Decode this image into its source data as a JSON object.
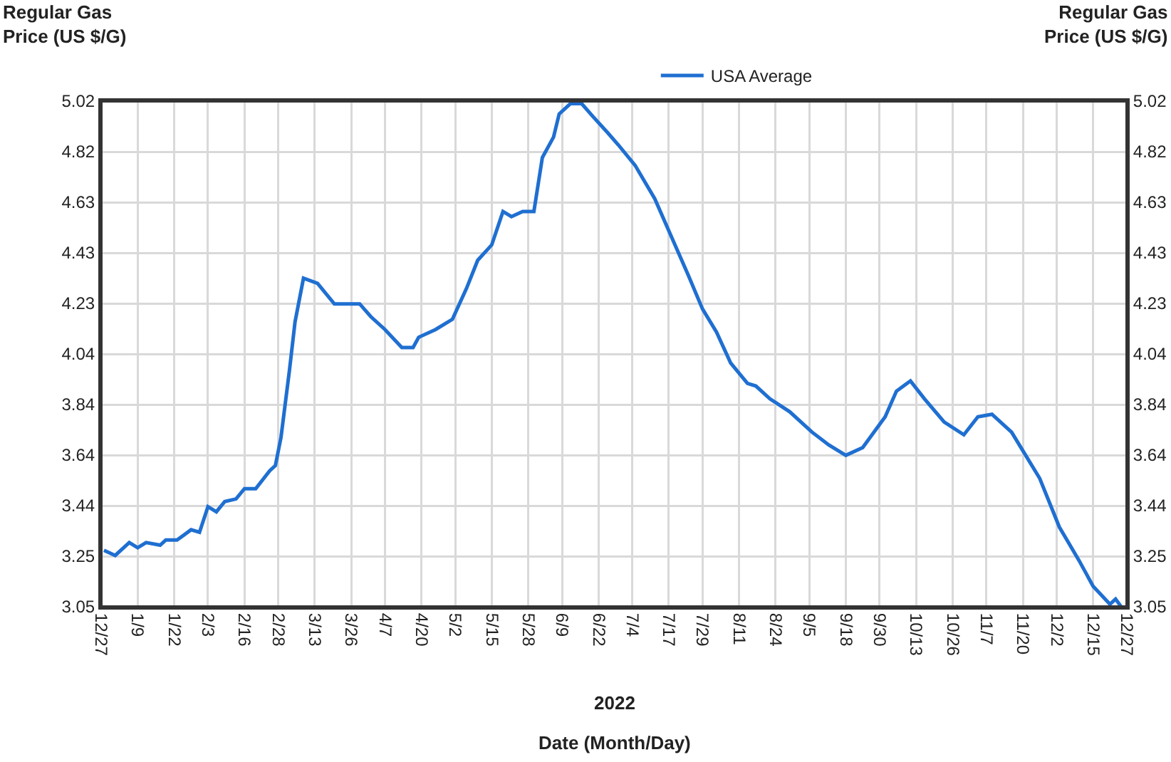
{
  "chart_data": {
    "type": "line",
    "xlabel": "Date (Month/Day)",
    "ylabel": "Regular Gas\nPrice (US $/G)",
    "y2label": "Regular Gas\nPrice (US $/G)",
    "annotations": [
      "2022"
    ],
    "x": [
      "2021-12-28",
      "2022-01-01",
      "2022-01-06",
      "2022-01-09",
      "2022-01-12",
      "2022-01-17",
      "2022-01-19",
      "2022-01-23",
      "2022-01-28",
      "2022-01-31",
      "2022-02-03",
      "2022-02-06",
      "2022-02-09",
      "2022-02-13",
      "2022-02-16",
      "2022-02-20",
      "2022-02-25",
      "2022-02-27",
      "2022-03-01",
      "2022-03-04",
      "2022-03-06",
      "2022-03-09",
      "2022-03-14",
      "2022-03-20",
      "2022-03-25",
      "2022-03-29",
      "2022-04-02",
      "2022-04-07",
      "2022-04-13",
      "2022-04-17",
      "2022-04-19",
      "2022-04-25",
      "2022-05-01",
      "2022-05-06",
      "2022-05-10",
      "2022-05-15",
      "2022-05-19",
      "2022-05-22",
      "2022-05-26",
      "2022-05-30",
      "2022-06-02",
      "2022-06-06",
      "2022-06-08",
      "2022-06-12",
      "2022-06-16",
      "2022-06-20",
      "2022-06-25",
      "2022-06-29",
      "2022-07-05",
      "2022-07-12",
      "2022-07-18",
      "2022-07-24",
      "2022-07-29",
      "2022-08-03",
      "2022-08-08",
      "2022-08-14",
      "2022-08-17",
      "2022-08-22",
      "2022-08-29",
      "2022-09-06",
      "2022-09-12",
      "2022-09-18",
      "2022-09-24",
      "2022-10-02",
      "2022-10-06",
      "2022-10-11",
      "2022-10-16",
      "2022-10-23",
      "2022-10-30",
      "2022-11-04",
      "2022-11-09",
      "2022-11-16",
      "2022-11-21",
      "2022-11-26",
      "2022-12-03",
      "2022-12-10",
      "2022-12-15",
      "2022-12-21",
      "2022-12-23",
      "2022-12-25"
    ],
    "series": [
      {
        "name": "USA Average",
        "color": "#1f6fd1",
        "values": [
          3.27,
          3.25,
          3.3,
          3.28,
          3.3,
          3.29,
          3.31,
          3.31,
          3.35,
          3.34,
          3.44,
          3.42,
          3.46,
          3.47,
          3.51,
          3.51,
          3.58,
          3.6,
          3.71,
          3.97,
          4.16,
          4.33,
          4.31,
          4.23,
          4.23,
          4.23,
          4.18,
          4.13,
          4.06,
          4.06,
          4.1,
          4.13,
          4.17,
          4.29,
          4.4,
          4.46,
          4.59,
          4.57,
          4.59,
          4.59,
          4.8,
          4.88,
          4.97,
          5.01,
          5.01,
          4.96,
          4.9,
          4.85,
          4.77,
          4.64,
          4.49,
          4.34,
          4.21,
          4.12,
          4.0,
          3.92,
          3.91,
          3.86,
          3.81,
          3.73,
          3.68,
          3.64,
          3.67,
          3.79,
          3.89,
          3.93,
          3.86,
          3.77,
          3.72,
          3.79,
          3.8,
          3.73,
          3.64,
          3.55,
          3.36,
          3.23,
          3.13,
          3.06,
          3.08,
          3.05
        ]
      }
    ],
    "xlim": [
      "2021-12-27",
      "2022-12-27"
    ],
    "xticks": [
      {
        "value": "2021-12-27",
        "label": "12/27"
      },
      {
        "value": "2022-01-09",
        "label": "1/9"
      },
      {
        "value": "2022-01-22",
        "label": "1/22"
      },
      {
        "value": "2022-02-03",
        "label": "2/3"
      },
      {
        "value": "2022-02-16",
        "label": "2/16"
      },
      {
        "value": "2022-02-28",
        "label": "2/28"
      },
      {
        "value": "2022-03-13",
        "label": "3/13"
      },
      {
        "value": "2022-03-26",
        "label": "3/26"
      },
      {
        "value": "2022-04-07",
        "label": "4/7"
      },
      {
        "value": "2022-04-20",
        "label": "4/20"
      },
      {
        "value": "2022-05-02",
        "label": "5/2"
      },
      {
        "value": "2022-05-15",
        "label": "5/15"
      },
      {
        "value": "2022-05-28",
        "label": "5/28"
      },
      {
        "value": "2022-06-09",
        "label": "6/9"
      },
      {
        "value": "2022-06-22",
        "label": "6/22"
      },
      {
        "value": "2022-07-04",
        "label": "7/4"
      },
      {
        "value": "2022-07-17",
        "label": "7/17"
      },
      {
        "value": "2022-07-29",
        "label": "7/29"
      },
      {
        "value": "2022-08-11",
        "label": "8/11"
      },
      {
        "value": "2022-08-24",
        "label": "8/24"
      },
      {
        "value": "2022-09-05",
        "label": "9/5"
      },
      {
        "value": "2022-09-18",
        "label": "9/18"
      },
      {
        "value": "2022-09-30",
        "label": "9/30"
      },
      {
        "value": "2022-10-13",
        "label": "10/13"
      },
      {
        "value": "2022-10-26",
        "label": "10/26"
      },
      {
        "value": "2022-11-07",
        "label": "11/7"
      },
      {
        "value": "2022-11-20",
        "label": "11/20"
      },
      {
        "value": "2022-12-02",
        "label": "12/2"
      },
      {
        "value": "2022-12-15",
        "label": "12/15"
      },
      {
        "value": "2022-12-27",
        "label": "12/27"
      }
    ],
    "ylim": [
      3.05,
      5.02
    ],
    "yticks": [
      3.05,
      {
        "value": 3.247,
        "label": "3.25"
      },
      {
        "value": 3.444,
        "label": "3.44"
      },
      {
        "value": 3.641,
        "label": "3.64"
      },
      {
        "value": 3.838,
        "label": "3.84"
      },
      {
        "value": 4.035,
        "label": "4.04"
      },
      {
        "value": 4.232,
        "label": "4.23"
      },
      {
        "value": 4.429,
        "label": "4.43"
      },
      {
        "value": 4.626,
        "label": "4.63"
      },
      {
        "value": 4.823,
        "label": "4.82"
      },
      5.02
    ],
    "y2lim": [
      3.05,
      5.02
    ],
    "y2ticks": [
      3.05,
      {
        "value": 3.247,
        "label": "3.25"
      },
      {
        "value": 3.444,
        "label": "3.44"
      },
      {
        "value": 3.641,
        "label": "3.64"
      },
      {
        "value": 3.838,
        "label": "3.84"
      },
      {
        "value": 4.035,
        "label": "4.04"
      },
      {
        "value": 4.232,
        "label": "4.23"
      },
      {
        "value": 4.429,
        "label": "4.43"
      },
      {
        "value": 4.626,
        "label": "4.63"
      },
      {
        "value": 4.823,
        "label": "4.82"
      },
      5.02
    ],
    "grid": true,
    "legend": "top",
    "marker": "none",
    "line_style": "solid"
  }
}
